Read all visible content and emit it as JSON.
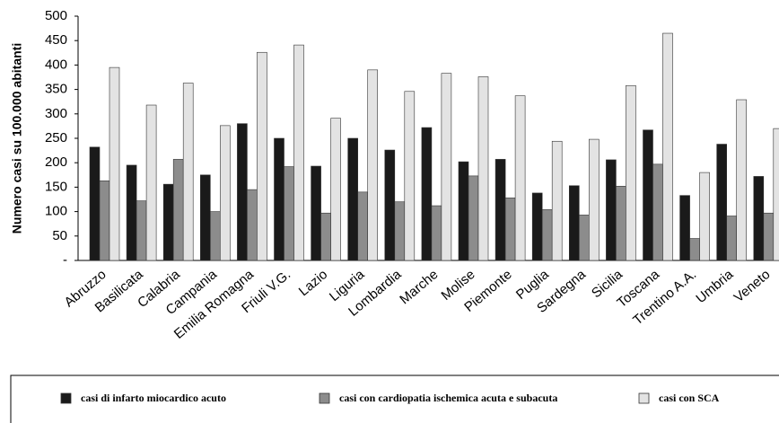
{
  "chart_data": {
    "type": "bar",
    "y_label": "Numero casi su 100.000 abitanti",
    "categories": [
      "Abruzzo",
      "Basilicata",
      "Calabria",
      "Campania",
      "Emilia Romagna",
      "Friuli V.G.",
      "Lazio",
      "Liguria",
      "Lombardia",
      "Marche",
      "Molise",
      "Piemonte",
      "Puglia",
      "Sardegna",
      "Sicilia",
      "Toscana",
      "Trentino A.A.",
      "Umbria",
      "Veneto"
    ],
    "series": [
      {
        "name": "casi di infarto miocardico acuto",
        "color": "#1a1a1a",
        "values": [
          232,
          195,
          156,
          175,
          280,
          250,
          193,
          250,
          226,
          272,
          202,
          207,
          138,
          153,
          206,
          267,
          133,
          238,
          172
        ]
      },
      {
        "name": "casi con cardiopatia ischemica acuta e subacuta",
        "color": "#8c8c8c",
        "values": [
          163,
          122,
          207,
          100,
          145,
          192,
          97,
          140,
          120,
          112,
          173,
          128,
          104,
          93,
          152,
          197,
          45,
          91,
          97
        ]
      },
      {
        "name": "casi con SCA",
        "color": "#e3e3e3",
        "values": [
          395,
          318,
          363,
          276,
          426,
          441,
          291,
          390,
          346,
          383,
          376,
          337,
          244,
          248,
          358,
          465,
          180,
          329,
          270
        ]
      }
    ],
    "ylim": [
      0,
      500
    ],
    "yticks": [
      {
        "value": 0,
        "label": "-"
      },
      50,
      100,
      150,
      200,
      250,
      300,
      350,
      400,
      450,
      500
    ],
    "grid": false
  }
}
